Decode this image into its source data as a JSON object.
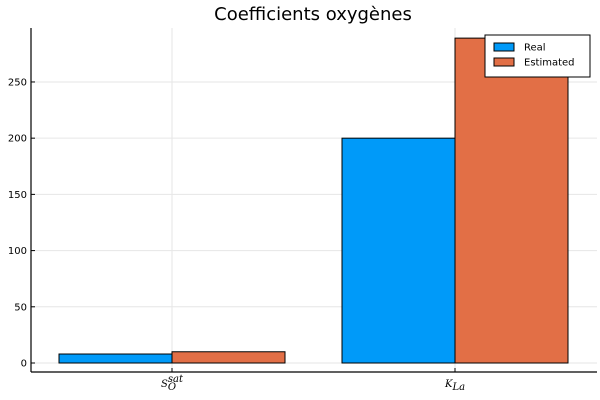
{
  "chart_data": {
    "type": "bar",
    "title": "Coefficients oxygènes",
    "xlabel": "",
    "ylabel": "",
    "categories": [
      "S_O^sat",
      "K_La"
    ],
    "category_labels": [
      {
        "base": "S",
        "sub": "O",
        "sup": "sat"
      },
      {
        "base": "K",
        "sub": "La",
        "sup": ""
      }
    ],
    "series": [
      {
        "name": "Real",
        "values": [
          8,
          200
        ],
        "color": "#009AF9"
      },
      {
        "name": "Estimated",
        "values": [
          10,
          289
        ],
        "color": "#E26F46"
      }
    ],
    "ylim": [
      -8,
      298
    ],
    "yticks": [
      0,
      50,
      100,
      150,
      200,
      250
    ],
    "grid": true,
    "legend_position": "top-right"
  }
}
